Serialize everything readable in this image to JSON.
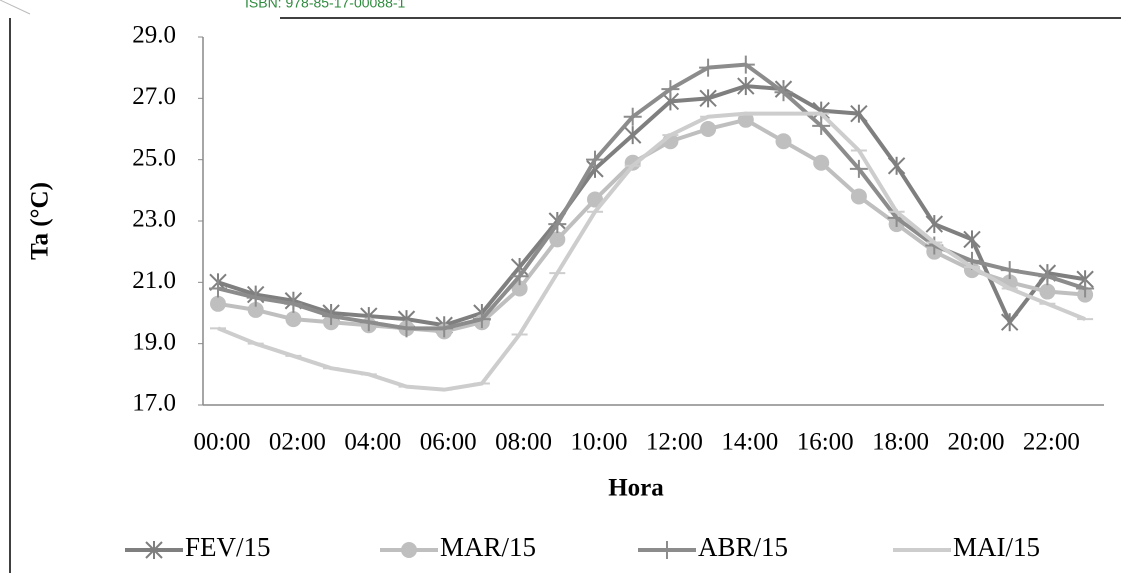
{
  "header": {
    "text": "ISBN: 978-85-17-00088-1"
  },
  "chart_data": {
    "type": "line",
    "x_label": "Hora",
    "y_label": "Ta (°C)",
    "categories": [
      "00:00",
      null,
      "02:00",
      null,
      "04:00",
      null,
      "06:00",
      null,
      "08:00",
      null,
      "10:00",
      null,
      "12:00",
      null,
      "14:00",
      null,
      "16:00",
      null,
      "18:00",
      null,
      "20:00",
      null,
      "22:00",
      null
    ],
    "ylim": [
      17,
      29
    ],
    "yticks": [
      {
        "value": 17,
        "label": "17.0"
      },
      {
        "value": 19,
        "label": "19.0"
      },
      {
        "value": 21,
        "label": "21.0"
      },
      {
        "value": 23,
        "label": "23.0"
      },
      {
        "value": 25,
        "label": "25.0"
      },
      {
        "value": 27,
        "label": "27.0"
      },
      {
        "value": 29,
        "label": "29.0"
      }
    ],
    "grid": false,
    "legend": "bottom",
    "series": [
      {
        "name": "FEV/15",
        "color": "#7f7f7f",
        "marker": "asterisk",
        "values": [
          21.0,
          20.6,
          20.4,
          20.0,
          19.9,
          19.8,
          19.6,
          20.0,
          21.5,
          23.0,
          24.7,
          25.8,
          26.9,
          27.0,
          27.4,
          27.3,
          26.6,
          26.5,
          24.8,
          22.9,
          22.4,
          19.7,
          21.3,
          21.1
        ]
      },
      {
        "name": "MAR/15",
        "color": "#bfbfbf",
        "marker": "circle",
        "values": [
          20.3,
          20.1,
          19.8,
          19.7,
          19.6,
          19.5,
          19.4,
          19.7,
          20.8,
          22.4,
          23.7,
          24.9,
          25.6,
          26.0,
          26.3,
          25.6,
          24.9,
          23.8,
          22.9,
          22.0,
          21.4,
          21.0,
          20.7,
          20.6
        ]
      },
      {
        "name": "ABR/15",
        "color": "#8c8c8c",
        "marker": "plus",
        "values": [
          20.8,
          20.5,
          20.3,
          19.9,
          19.7,
          19.5,
          19.5,
          19.8,
          21.2,
          22.9,
          25.0,
          26.4,
          27.3,
          28.0,
          28.1,
          27.2,
          26.1,
          24.7,
          23.1,
          22.2,
          21.7,
          21.4,
          21.2,
          20.8
        ]
      },
      {
        "name": "MAI/15",
        "color": "#cdcdcd",
        "marker": "dash",
        "values": [
          19.5,
          19.0,
          18.6,
          18.2,
          18.0,
          17.6,
          17.5,
          17.7,
          19.3,
          21.3,
          23.3,
          24.8,
          25.8,
          26.4,
          26.5,
          26.5,
          26.5,
          25.3,
          23.3,
          22.3,
          21.5,
          20.8,
          20.3,
          19.8
        ]
      }
    ]
  }
}
